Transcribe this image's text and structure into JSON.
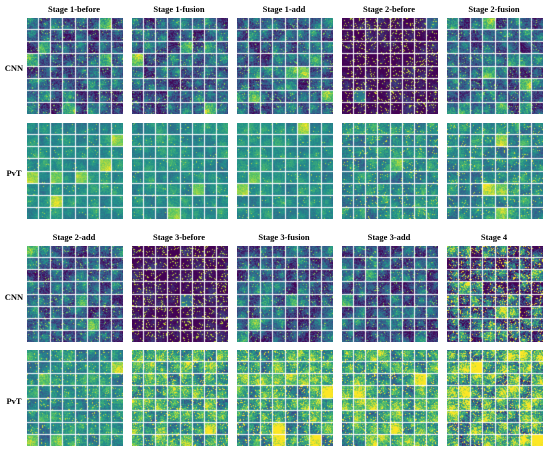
{
  "figure": {
    "groups": [
      {
        "titles": [
          "Stage 1-before",
          "Stage 1-fusion",
          "Stage 1-add",
          "Stage 2-before",
          "Stage 2-fusion"
        ],
        "rows": [
          "CNN",
          "PvT"
        ]
      },
      {
        "titles": [
          "Stage 2-add",
          "Stage 3-before",
          "Stage 3-fusion",
          "Stage 3-add",
          "Stage 4"
        ],
        "rows": [
          "CNN",
          "PvT"
        ]
      }
    ],
    "colormap": [
      "#440154",
      "#3b528b",
      "#21918c",
      "#5ec962",
      "#fde725"
    ]
  }
}
